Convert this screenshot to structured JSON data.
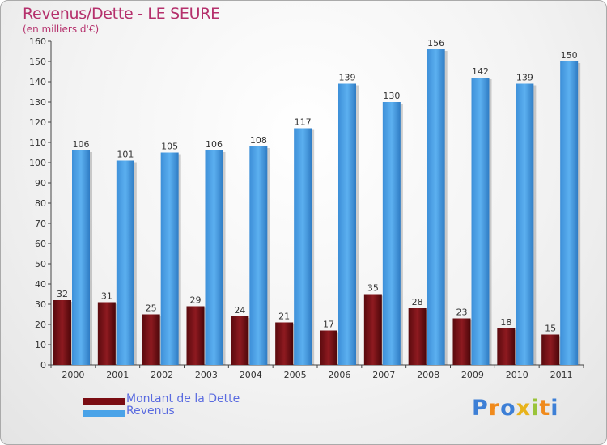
{
  "title": "Revenus/Dette - LE SEURE",
  "subtitle": "(en milliers d'€)",
  "brand": {
    "letters": [
      "P",
      "r",
      "o",
      "x",
      "i",
      "t",
      "i"
    ],
    "colors": [
      "#3d7fd6",
      "#f08a1c",
      "#3d7fd6",
      "#e8b31c",
      "#9ac43a",
      "#f08a1c",
      "#3d7fd6"
    ]
  },
  "legend": [
    {
      "label": "Montant de la Dette",
      "color": "#7a0c12"
    },
    {
      "label": "Revenus",
      "color": "#4aa3e8"
    }
  ],
  "chart_data": {
    "type": "bar",
    "title": "Revenus/Dette - LE SEURE",
    "subtitle": "(en milliers d'€)",
    "categories": [
      "2000",
      "2001",
      "2002",
      "2003",
      "2004",
      "2005",
      "2006",
      "2007",
      "2008",
      "2009",
      "2010",
      "2011"
    ],
    "series": [
      {
        "name": "Montant de la Dette",
        "color": "#7a0c12",
        "values": [
          32,
          31,
          25,
          29,
          24,
          21,
          17,
          35,
          28,
          23,
          18,
          15
        ]
      },
      {
        "name": "Revenus",
        "color": "#4aa3e8",
        "values": [
          106,
          101,
          105,
          106,
          108,
          117,
          139,
          130,
          156,
          142,
          139,
          150
        ]
      }
    ],
    "ylim": [
      0,
      160
    ],
    "yticks": [
      0,
      10,
      20,
      30,
      40,
      50,
      60,
      70,
      80,
      90,
      100,
      110,
      120,
      130,
      140,
      150,
      160
    ],
    "grid": false,
    "legend_position": "bottom-left"
  }
}
